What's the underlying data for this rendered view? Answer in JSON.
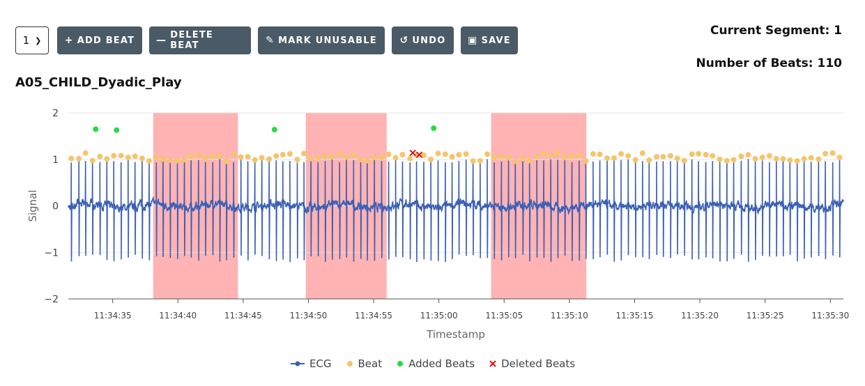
{
  "toolbar": {
    "segment_value": "1",
    "add_beat": "ADD BEAT",
    "delete_beat": "DELETE BEAT",
    "mark_unusable": "MARK UNUSABLE",
    "undo": "UNDO",
    "save": "SAVE"
  },
  "info": {
    "current_segment": "Current Segment: 1",
    "number_of_beats": "Number of Beats: 110"
  },
  "plot_title": "A05_CHILD_Dyadic_Play",
  "chart_data": {
    "type": "line",
    "xlabel": "Timestamp",
    "ylabel": "Signal",
    "xrange": [
      "11:34:31.6",
      "11:35:31.0"
    ],
    "ylim": [
      -2,
      2
    ],
    "yticks": [
      2,
      1,
      0,
      -1,
      -2
    ],
    "xticks": [
      "11:34:35",
      "11:34:40",
      "11:34:45",
      "11:34:50",
      "11:34:55",
      "11:35:00",
      "11:35:05",
      "11:35:10",
      "11:35:15",
      "11:35:20",
      "11:35:25",
      "11:35:30"
    ],
    "grid": true,
    "legend_position": "bottom",
    "colors": {
      "ecg": "#3b5fb5",
      "beat": "#f5c56b",
      "added": "#22dd44",
      "deleted": "#dd1111",
      "unusable": "#ffb3b3"
    },
    "unusable_regions": [
      [
        "11:34:38.1",
        "11:34:44.6"
      ],
      [
        "11:34:49.8",
        "11:34:56.0"
      ],
      [
        "11:35:04.0",
        "11:35:11.3"
      ]
    ],
    "ecg_approx": {
      "r_peak": 1.0,
      "s_trough": -1.1,
      "baseline_noise": 0.1,
      "beats_in_view": 110
    },
    "added_beats": [
      {
        "t": "11:34:33.7",
        "y": 1.65
      },
      {
        "t": "11:34:35.3",
        "y": 1.63
      },
      {
        "t": "11:34:47.4",
        "y": 1.64
      },
      {
        "t": "11:34:59.6",
        "y": 1.67
      }
    ],
    "deleted_beats": [
      {
        "t": "11:34:58.0",
        "y": 1.14
      },
      {
        "t": "11:34:58.5",
        "y": 1.1
      }
    ],
    "series": [
      {
        "name": "ECG"
      },
      {
        "name": "Beat"
      },
      {
        "name": "Added Beats"
      },
      {
        "name": "Deleted Beats"
      }
    ]
  }
}
